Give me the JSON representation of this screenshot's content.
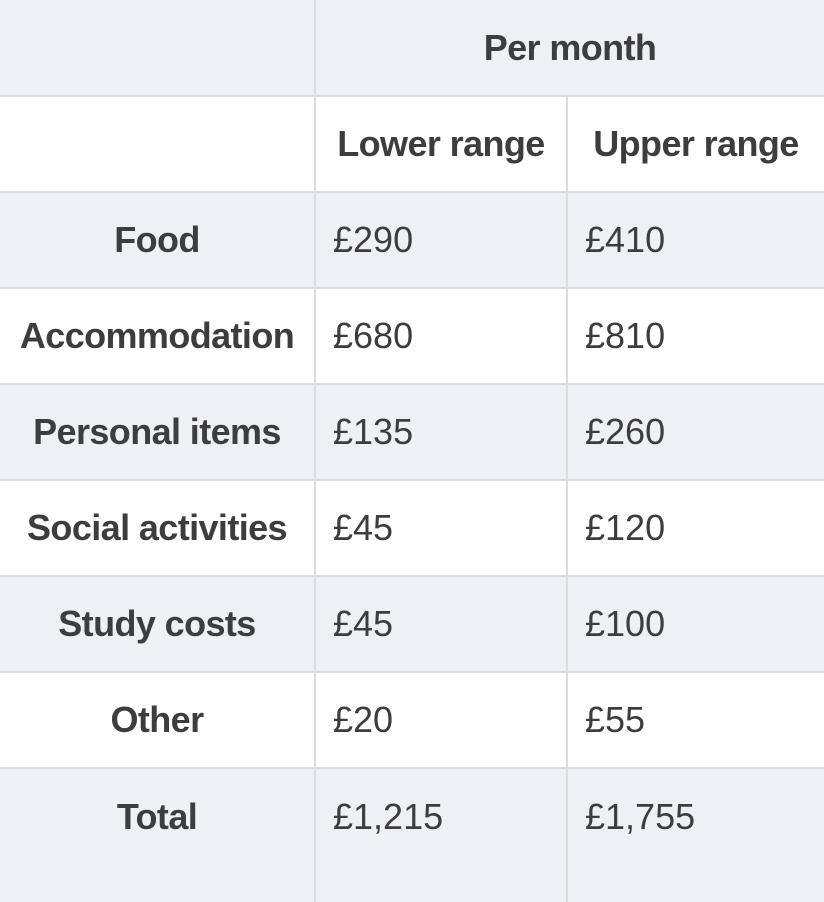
{
  "table": {
    "headers": {
      "per_month": "Per month",
      "lower_range": "Lower range",
      "upper_range": "Upper range"
    },
    "rows": [
      {
        "label": "Food",
        "lower": "£290",
        "upper": "£410"
      },
      {
        "label": "Accommodation",
        "lower": "£680",
        "upper": "£810"
      },
      {
        "label": "Personal items",
        "lower": "£135",
        "upper": "£260"
      },
      {
        "label": "Social activities",
        "lower": "£45",
        "upper": "£120"
      },
      {
        "label": "Study costs",
        "lower": "£45",
        "upper": "£100"
      },
      {
        "label": "Other",
        "lower": "£20",
        "upper": "£55"
      },
      {
        "label": "Total",
        "lower": "£1,215",
        "upper": "£1,755"
      }
    ],
    "colors": {
      "stripe_row_background": "#edf1f6",
      "white_row_background": "#ffffff",
      "border": "#dcdcdc",
      "text": "#3d3d3d"
    }
  }
}
